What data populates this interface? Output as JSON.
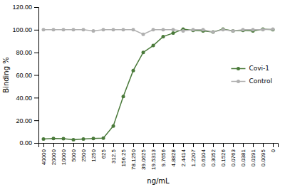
{
  "chart_data": {
    "type": "line",
    "xlabel": "ng/mL",
    "ylabel": "Binding %",
    "categories": [
      "40000",
      "20000",
      "10000",
      "5000",
      "2500",
      "1250",
      "625",
      "312.5",
      "156.25",
      "78.1250",
      "39.0625",
      "19.5313",
      "9.7656",
      "4.8828",
      "2.4414",
      "1.2207",
      "0.6104",
      "0.3052",
      "0.1526",
      "0.0763",
      "0.0381",
      "0.0191",
      "0.0095",
      "0"
    ],
    "series": [
      {
        "name": "Covi-1",
        "color": "#4a7a3a",
        "marker": "circle",
        "values": [
          3.5,
          4.0,
          3.8,
          2.8,
          3.5,
          4.0,
          4.2,
          15.0,
          41.0,
          64.0,
          80.0,
          86.0,
          94.0,
          97.0,
          100.5,
          99.5,
          99.0,
          98.0,
          100.5,
          99.0,
          99.5,
          99.0,
          100.5,
          100.0
        ]
      },
      {
        "name": "Control",
        "color": "#b0b0b0",
        "marker": "circle",
        "values": [
          100.0,
          100.0,
          100.0,
          100.0,
          100.0,
          99.0,
          100.0,
          100.0,
          100.0,
          100.0,
          96.0,
          100.0,
          100.0,
          100.0,
          99.0,
          100.0,
          100.0,
          98.0,
          100.0,
          99.0,
          100.0,
          100.0,
          100.0,
          100.5
        ]
      }
    ],
    "ylim": [
      0.0,
      120.0
    ],
    "yticks": [
      {
        "value": 0.0,
        "label": "0.00"
      },
      {
        "value": 20.0,
        "label": "20.00"
      },
      {
        "value": 40.0,
        "label": "40.00"
      },
      {
        "value": 60.0,
        "label": "60.00"
      },
      {
        "value": 80.0,
        "label": "80.00"
      },
      {
        "value": 100.0,
        "label": "100.00"
      },
      {
        "value": 120.0,
        "label": "120.00"
      }
    ],
    "grid": false,
    "legend": "right"
  }
}
